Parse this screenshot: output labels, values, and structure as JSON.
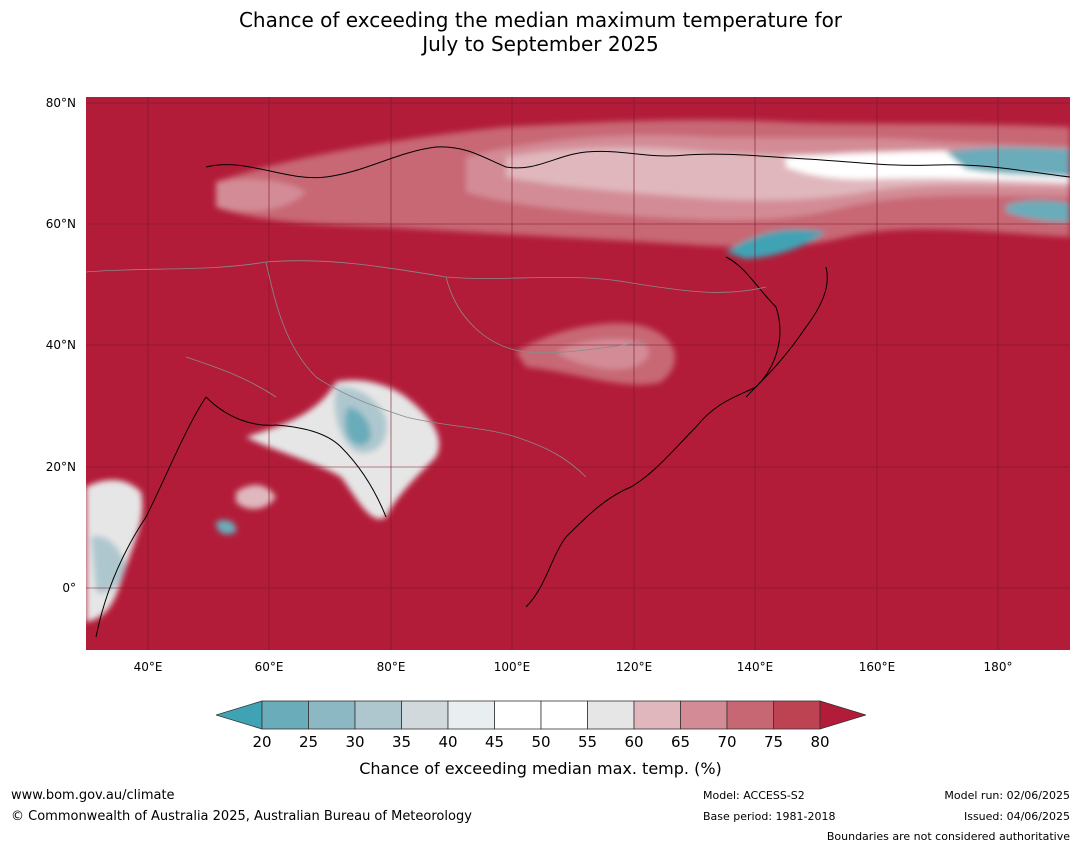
{
  "title": {
    "line1": "Chance of exceeding the median maximum temperature for",
    "line2": "July to September 2025"
  },
  "map": {
    "background_color": "#b21c39",
    "lat_labels": [
      "80°N",
      "60°N",
      "40°N",
      "20°N",
      "0°"
    ],
    "lon_labels": [
      "40°E",
      "60°E",
      "80°E",
      "100°E",
      "120°E",
      "140°E",
      "160°E",
      "180°"
    ]
  },
  "colorbar": {
    "ticks": [
      "20",
      "25",
      "30",
      "35",
      "40",
      "45",
      "50",
      "55",
      "60",
      "65",
      "70",
      "75",
      "80"
    ],
    "colors": [
      "#3fa3b4",
      "#6aacba",
      "#8cb8c4",
      "#aec7cf",
      "#d2d9dc",
      "#e9eff0",
      "#ffffff",
      "#ffffff",
      "#e6e6e6",
      "#e0b7bd",
      "#d38c96",
      "#c86774",
      "#bd4353",
      "#b21c39"
    ],
    "label": "Chance of exceeding median max. temp. (%)"
  },
  "footer": {
    "website": "www.bom.gov.au/climate",
    "copyright": "© Commonwealth of Australia 2025, Australian Bureau of Meteorology",
    "model": "Model: ACCESS-S2",
    "base_period": "Base period: 1981-2018",
    "model_run": "Model run: 02/06/2025",
    "issued": "Issued: 04/06/2025",
    "disclaimer": "Boundaries are not considered authoritative"
  }
}
